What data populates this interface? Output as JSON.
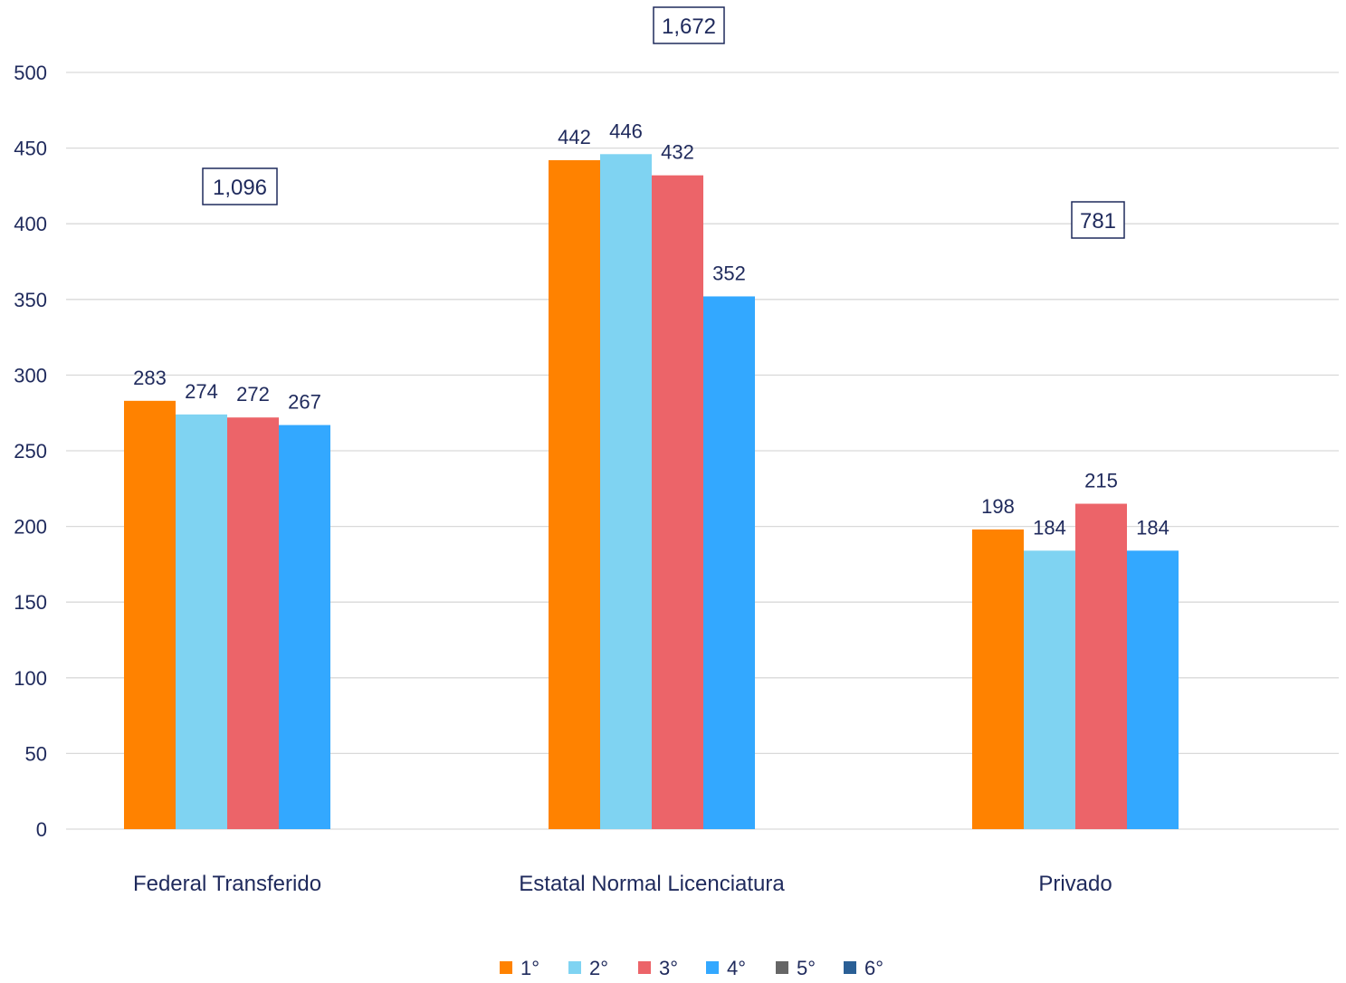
{
  "chart_data": {
    "type": "bar",
    "categories": [
      "Federal Transferido",
      "Estatal Normal Licenciatura",
      "Privado"
    ],
    "series": [
      {
        "name": "1°",
        "color": "#FF8200",
        "values": [
          283,
          442,
          198
        ]
      },
      {
        "name": "2°",
        "color": "#7FD3F2",
        "values": [
          274,
          446,
          184
        ]
      },
      {
        "name": "3°",
        "color": "#EC6469",
        "values": [
          272,
          432,
          215
        ]
      },
      {
        "name": "4°",
        "color": "#33A8FF",
        "values": [
          267,
          352,
          184
        ]
      },
      {
        "name": "5°",
        "color": "#666666",
        "values": [
          null,
          null,
          null
        ]
      },
      {
        "name": "6°",
        "color": "#2A5F95",
        "values": [
          null,
          null,
          null
        ]
      }
    ],
    "totals": [
      "1,096",
      "1,672",
      "781"
    ],
    "ylim": [
      0,
      500
    ],
    "yticks": [
      0,
      50,
      100,
      150,
      200,
      250,
      300,
      350,
      400,
      450,
      500
    ],
    "grid": true,
    "legend_position": "bottom",
    "label_color": "#1F2A5C",
    "grid_color": "#D9D9D9"
  }
}
